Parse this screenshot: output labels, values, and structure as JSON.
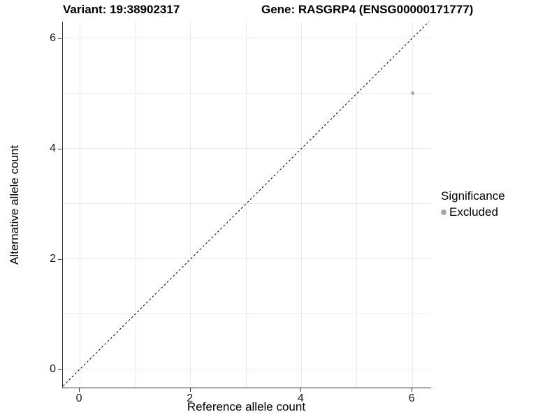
{
  "header": {
    "variant_title": "Variant: 19:38902317",
    "gene_title": "Gene: RASGRP4 (ENSG00000171777)"
  },
  "chart_data": {
    "type": "scatter",
    "title": "",
    "xlabel": "Reference allele count",
    "ylabel": "Alternative allele count",
    "xlim": [
      -0.303,
      6.34
    ],
    "ylim": [
      -0.329,
      6.301
    ],
    "x_ticks": [
      0,
      2,
      4,
      6
    ],
    "y_ticks": [
      0,
      2,
      4,
      6
    ],
    "x_gridlines": [
      0,
      1,
      2,
      3,
      4,
      5,
      6
    ],
    "y_gridlines": [
      0,
      1,
      2,
      3,
      4,
      5,
      6
    ],
    "grid": true,
    "points": [
      {
        "x": 6,
        "y": 5,
        "series": "Excluded"
      }
    ],
    "identity_line": {
      "style": "dashed",
      "from": -0.3,
      "to": 6.3
    },
    "legend": {
      "position": "right",
      "title": "Significance",
      "entries": [
        {
          "label": "Excluded",
          "color": "#a8a8a8"
        }
      ]
    }
  },
  "colors": {
    "background": "#ffffff",
    "gridline": "#ebebeb",
    "axis_line": "#333333",
    "tick_label": "#1a1a1a",
    "point": "#a8a8a8",
    "identity_line": "#000000"
  }
}
